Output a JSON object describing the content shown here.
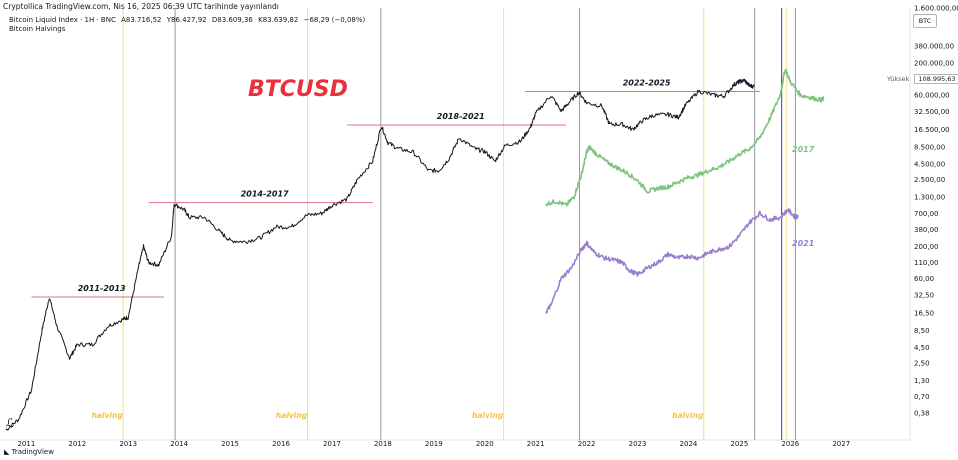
{
  "header": {
    "line1": "Cryptollica TradingView.com, Nis 16, 2025 06:39 UTC tarihinde yayınlandı",
    "symbol": "Bitcoin Liquid Index · 1H · BNC",
    "ohlc": {
      "open": "A83.716,52",
      "high": "Y86.427,92",
      "low": "D83.609,36",
      "close": "K83.639,82",
      "change": "−68,29 (−0,08%)"
    },
    "indicator": "Bitcoin Halvings"
  },
  "currency_button": "BTC",
  "price_tag": {
    "label": "Yüksek",
    "value": "108.995,63"
  },
  "brand": "TradingView",
  "chart_data": {
    "type": "line",
    "title": "BTCUSD",
    "title_color": "#e8313b",
    "yscale": "log",
    "ylim": [
      0.2,
      1600000
    ],
    "xlim": [
      2010.6,
      2027.8
    ],
    "x_ticks": [
      "2011",
      "2012",
      "2013",
      "2014",
      "2015",
      "2016",
      "2017",
      "2018",
      "2019",
      "2020",
      "2021",
      "2022",
      "2023",
      "2024",
      "2025",
      "2026",
      "2027"
    ],
    "y_ticks": [
      "1.600.000,00",
      "380.000,00",
      "200.000,00",
      "108.995,63",
      "60.000,00",
      "32.500,00",
      "16.500,00",
      "8.500,00",
      "4.500,00",
      "2.500,00",
      "1.300,00",
      "700,00",
      "380,00",
      "200,00",
      "110,00",
      "60,00",
      "32,50",
      "16,50",
      "8,50",
      "4,50",
      "2,50",
      "1,30",
      "0,70",
      "0,38"
    ],
    "series": [
      {
        "color": "#131722",
        "values": [
          [
            2010.6,
            0.2
          ],
          [
            2010.85,
            0.3
          ],
          [
            2011.1,
            0.9
          ],
          [
            2011.3,
            8
          ],
          [
            2011.45,
            30
          ],
          [
            2011.6,
            10
          ],
          [
            2011.85,
            3
          ],
          [
            2012.0,
            5
          ],
          [
            2012.3,
            5
          ],
          [
            2012.6,
            10
          ],
          [
            2012.9,
            13
          ],
          [
            2013.0,
            14
          ],
          [
            2013.2,
            90
          ],
          [
            2013.3,
            200
          ],
          [
            2013.4,
            110
          ],
          [
            2013.6,
            100
          ],
          [
            2013.85,
            300
          ],
          [
            2013.9,
            1000
          ],
          [
            2014.1,
            800
          ],
          [
            2014.2,
            600
          ],
          [
            2014.5,
            600
          ],
          [
            2014.8,
            350
          ],
          [
            2015.0,
            250
          ],
          [
            2015.3,
            240
          ],
          [
            2015.6,
            280
          ],
          [
            2015.9,
            420
          ],
          [
            2016.2,
            420
          ],
          [
            2016.5,
            650
          ],
          [
            2016.8,
            700
          ],
          [
            2017.0,
            950
          ],
          [
            2017.3,
            1200
          ],
          [
            2017.5,
            2500
          ],
          [
            2017.8,
            5000
          ],
          [
            2017.97,
            19000
          ],
          [
            2018.1,
            10000
          ],
          [
            2018.3,
            8000
          ],
          [
            2018.6,
            7000
          ],
          [
            2018.9,
            3500
          ],
          [
            2019.1,
            3500
          ],
          [
            2019.3,
            5500
          ],
          [
            2019.5,
            12000
          ],
          [
            2019.8,
            8000
          ],
          [
            2020.0,
            7200
          ],
          [
            2020.2,
            5000
          ],
          [
            2020.4,
            9000
          ],
          [
            2020.7,
            10500
          ],
          [
            2020.9,
            18000
          ],
          [
            2021.0,
            30000
          ],
          [
            2021.3,
            60000
          ],
          [
            2021.5,
            33000
          ],
          [
            2021.65,
            45000
          ],
          [
            2021.85,
            67000
          ],
          [
            2022.0,
            45000
          ],
          [
            2022.3,
            40000
          ],
          [
            2022.45,
            20000
          ],
          [
            2022.7,
            20000
          ],
          [
            2022.9,
            16500
          ],
          [
            2023.1,
            23000
          ],
          [
            2023.3,
            28000
          ],
          [
            2023.6,
            29000
          ],
          [
            2023.8,
            26000
          ],
          [
            2023.95,
            42000
          ],
          [
            2024.2,
            70000
          ],
          [
            2024.5,
            60000
          ],
          [
            2024.7,
            58000
          ],
          [
            2024.9,
            90000
          ],
          [
            2025.0,
            100000
          ],
          [
            2025.1,
            105000
          ],
          [
            2025.2,
            85000
          ],
          [
            2025.29,
            83640
          ]
        ]
      },
      {
        "name": "2017",
        "color": "#7ec47e",
        "values": [
          [
            2021.2,
            1000
          ],
          [
            2021.4,
            1100
          ],
          [
            2021.6,
            950
          ],
          [
            2021.75,
            1300
          ],
          [
            2021.9,
            3000
          ],
          [
            2022.0,
            7000
          ],
          [
            2022.05,
            8500
          ],
          [
            2022.2,
            6500
          ],
          [
            2022.4,
            4800
          ],
          [
            2022.6,
            3900
          ],
          [
            2022.8,
            3200
          ],
          [
            2023.0,
            2400
          ],
          [
            2023.2,
            1600
          ],
          [
            2023.4,
            1800
          ],
          [
            2023.6,
            1900
          ],
          [
            2023.8,
            2300
          ],
          [
            2024.0,
            2700
          ],
          [
            2024.2,
            3000
          ],
          [
            2024.4,
            3500
          ],
          [
            2024.6,
            4000
          ],
          [
            2024.8,
            5000
          ],
          [
            2025.0,
            6500
          ],
          [
            2025.2,
            8000
          ],
          [
            2025.4,
            12000
          ],
          [
            2025.6,
            25000
          ],
          [
            2025.8,
            60000
          ],
          [
            2025.9,
            160000
          ],
          [
            2026.0,
            100000
          ],
          [
            2026.2,
            60000
          ],
          [
            2026.4,
            55000
          ],
          [
            2026.6,
            50000
          ],
          [
            2026.65,
            52000
          ]
        ]
      },
      {
        "name": "2021",
        "color": "#9a7fd1",
        "values": [
          [
            2021.2,
            17
          ],
          [
            2021.3,
            22
          ],
          [
            2021.5,
            60
          ],
          [
            2021.7,
            90
          ],
          [
            2021.9,
            180
          ],
          [
            2022.0,
            230
          ],
          [
            2022.15,
            160
          ],
          [
            2022.35,
            130
          ],
          [
            2022.55,
            120
          ],
          [
            2022.7,
            110
          ],
          [
            2022.85,
            80
          ],
          [
            2023.0,
            70
          ],
          [
            2023.2,
            90
          ],
          [
            2023.4,
            110
          ],
          [
            2023.6,
            150
          ],
          [
            2023.8,
            130
          ],
          [
            2024.0,
            140
          ],
          [
            2024.2,
            130
          ],
          [
            2024.4,
            160
          ],
          [
            2024.6,
            180
          ],
          [
            2024.8,
            200
          ],
          [
            2025.0,
            300
          ],
          [
            2025.2,
            500
          ],
          [
            2025.4,
            700
          ],
          [
            2025.6,
            550
          ],
          [
            2025.8,
            600
          ],
          [
            2025.95,
            800
          ],
          [
            2026.1,
            600
          ],
          [
            2026.15,
            650
          ]
        ]
      }
    ],
    "cycle_lines": [
      {
        "label": "2011-2013",
        "value": 30,
        "x0": 2011.1,
        "x1": 2013.7
      },
      {
        "label": "2014-2017",
        "value": 1050,
        "x0": 2013.4,
        "x1": 2017.8
      },
      {
        "label": "2018-2021",
        "value": 19500,
        "x0": 2017.3,
        "x1": 2021.6
      },
      {
        "label": "2022-2025",
        "value": 69000,
        "x0": 2020.8,
        "x1": 2025.4
      }
    ],
    "halvings": [
      {
        "label": "halving",
        "x": 2012.9
      },
      {
        "label": "halving",
        "x": 2016.52
      },
      {
        "label": "halving",
        "x": 2020.37
      },
      {
        "label": "halving",
        "x": 2024.3
      }
    ],
    "halving_color": "#f5e27a",
    "vertical_markers": [
      {
        "x": 2013.92,
        "color": "#9598a1"
      },
      {
        "x": 2017.96,
        "color": "#9598a1"
      },
      {
        "x": 2021.86,
        "color": "#9598a1"
      },
      {
        "x": 2025.3,
        "color": "#9598a1"
      },
      {
        "x": 2025.83,
        "color": "#3b3bb0"
      },
      {
        "x": 2025.93,
        "color": "#f5e27a"
      },
      {
        "x": 2026.1,
        "color": "#9598a1"
      }
    ]
  }
}
